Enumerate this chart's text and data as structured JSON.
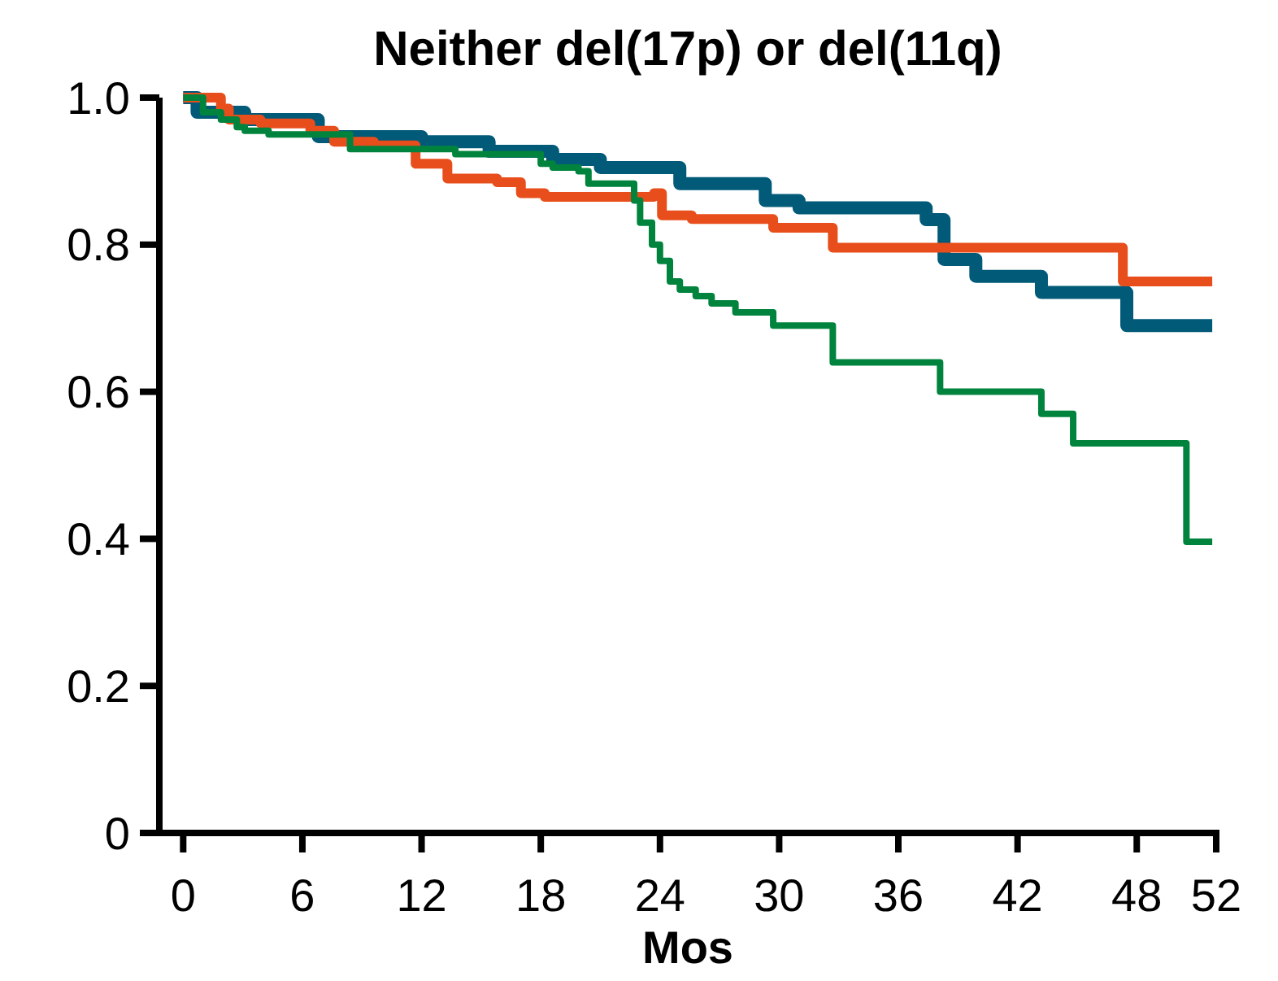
{
  "chart_data": {
    "type": "step",
    "title": "Neither del(17p) or del(11q)",
    "xlabel": "Mos",
    "xlim": [
      -1.2,
      52
    ],
    "xticks": [
      0,
      6,
      12,
      18,
      24,
      30,
      36,
      42,
      48,
      52
    ],
    "ylim": [
      0,
      1
    ],
    "yticks": [
      {
        "value": 0,
        "label": "0"
      },
      0.2,
      0.4,
      0.6,
      0.8,
      {
        "value": 1,
        "label": "1.0"
      }
    ],
    "grid": false,
    "series": [
      {
        "color": "#005a78",
        "x": [
          0,
          0.7,
          3.1,
          6.8,
          12,
          15.4,
          18.6,
          21,
          25,
          29.3,
          31,
          37.4,
          38.3,
          39.9,
          43.2,
          47.5,
          51.8
        ],
        "values": [
          1,
          0.98,
          0.97,
          0.947,
          0.94,
          0.927,
          0.916,
          0.905,
          0.883,
          0.86,
          0.85,
          0.834,
          0.78,
          0.757,
          0.735,
          0.69,
          0.69
        ]
      },
      {
        "color": "#e84e1b",
        "x": [
          0,
          1.9,
          2.3,
          3.9,
          6.4,
          7.6,
          9.6,
          11.7,
          13.3,
          15.8,
          17,
          18.2,
          23.7,
          24.1,
          25.6,
          29.7,
          32.7,
          47.3,
          51.8
        ],
        "values": [
          1,
          0.985,
          0.97,
          0.965,
          0.955,
          0.94,
          0.935,
          0.91,
          0.89,
          0.885,
          0.87,
          0.865,
          0.87,
          0.84,
          0.835,
          0.823,
          0.796,
          0.75,
          0.75
        ]
      },
      {
        "color": "#00843d",
        "x": [
          0,
          1,
          1.9,
          2.7,
          3.1,
          4.3,
          8.4,
          13.7,
          18,
          18.6,
          19.9,
          20.4,
          22.7,
          23,
          23.6,
          24,
          24.5,
          25,
          25.8,
          26.6,
          27.8,
          29.7,
          32.7,
          38.1,
          43.2,
          44.8,
          50.5,
          51.8
        ],
        "values": [
          1,
          0.98,
          0.97,
          0.96,
          0.955,
          0.95,
          0.93,
          0.923,
          0.91,
          0.905,
          0.9,
          0.883,
          0.86,
          0.83,
          0.8,
          0.778,
          0.75,
          0.739,
          0.73,
          0.72,
          0.708,
          0.69,
          0.64,
          0.6,
          0.57,
          0.53,
          0.396,
          0.396
        ]
      }
    ]
  }
}
